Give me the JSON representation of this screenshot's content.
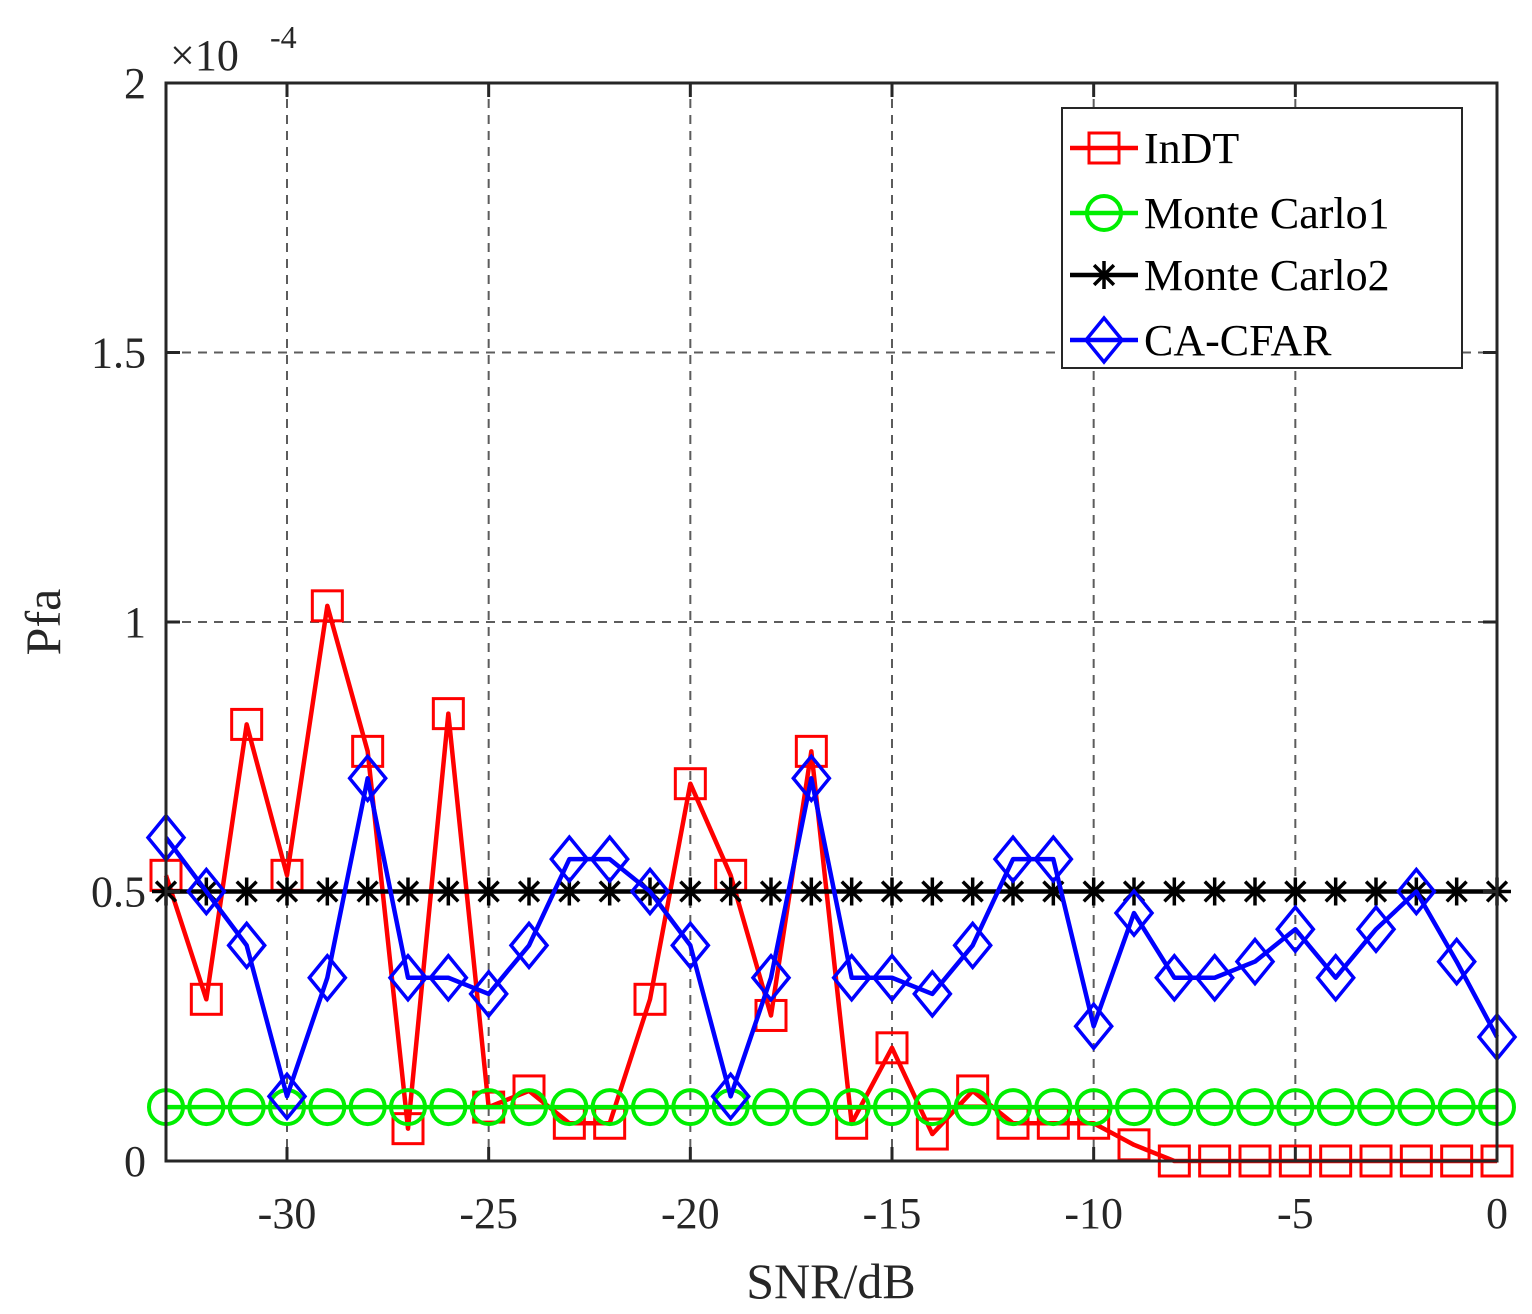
{
  "chart_data": {
    "type": "line",
    "xlabel": "SNR/dB",
    "ylabel": "Pfa",
    "xlim": [
      -33,
      0
    ],
    "ylim": [
      0,
      2
    ],
    "y_multiplier": "×10",
    "y_exponent": "-4",
    "xticks": [
      -30,
      -25,
      -20,
      -15,
      -10,
      -5,
      0
    ],
    "xtick_labels": [
      "-30",
      "-25",
      "-20",
      "-15",
      "-10",
      "-5",
      "0"
    ],
    "yticks": [
      0,
      0.5,
      1,
      1.5,
      2
    ],
    "ytick_labels": [
      "0",
      "0.5",
      "1",
      "1.5",
      "2"
    ],
    "grid": true,
    "legend_position": "top-right",
    "x": [
      -33,
      -32,
      -31,
      -30,
      -29,
      -28,
      -27,
      -26,
      -25,
      -24,
      -23,
      -22,
      -21,
      -20,
      -19,
      -18,
      -17,
      -16,
      -15,
      -14,
      -13,
      -12,
      -11,
      -10,
      -9,
      -8,
      -7,
      -6,
      -5,
      -4,
      -3,
      -2,
      -1,
      0
    ],
    "series": [
      {
        "name": "InDT",
        "color": "#ff0000",
        "marker": "square",
        "values": [
          0.53,
          0.3,
          0.81,
          0.53,
          1.03,
          0.76,
          0.06,
          0.83,
          0.1,
          0.13,
          0.07,
          0.07,
          0.3,
          0.7,
          0.53,
          0.27,
          0.76,
          0.07,
          0.21,
          0.05,
          0.13,
          0.07,
          0.07,
          0.07,
          0.03,
          0,
          0,
          0,
          0,
          0,
          0,
          0,
          0,
          0
        ]
      },
      {
        "name": "Monte Carlo1",
        "color": "#00ee00",
        "marker": "circle",
        "values": [
          0.1,
          0.1,
          0.1,
          0.1,
          0.1,
          0.1,
          0.1,
          0.1,
          0.1,
          0.1,
          0.1,
          0.1,
          0.1,
          0.1,
          0.1,
          0.1,
          0.1,
          0.1,
          0.1,
          0.1,
          0.1,
          0.1,
          0.1,
          0.1,
          0.1,
          0.1,
          0.1,
          0.1,
          0.1,
          0.1,
          0.1,
          0.1,
          0.1,
          0.1
        ]
      },
      {
        "name": "Monte Carlo2",
        "color": "#000000",
        "marker": "asterisk",
        "values": [
          0.5,
          0.5,
          0.5,
          0.5,
          0.5,
          0.5,
          0.5,
          0.5,
          0.5,
          0.5,
          0.5,
          0.5,
          0.5,
          0.5,
          0.5,
          0.5,
          0.5,
          0.5,
          0.5,
          0.5,
          0.5,
          0.5,
          0.5,
          0.5,
          0.5,
          0.5,
          0.5,
          0.5,
          0.5,
          0.5,
          0.5,
          0.5,
          0.5,
          0.5
        ]
      },
      {
        "name": "CA-CFAR",
        "color": "#0000ff",
        "marker": "diamond",
        "values": [
          0.6,
          0.5,
          0.4,
          0.12,
          0.34,
          0.71,
          0.34,
          0.34,
          0.31,
          0.4,
          0.56,
          0.56,
          0.5,
          0.4,
          0.12,
          0.34,
          0.71,
          0.34,
          0.34,
          0.31,
          0.4,
          0.56,
          0.56,
          0.25,
          0.46,
          0.34,
          0.34,
          0.37,
          0.43,
          0.34,
          0.43,
          0.5,
          0.37,
          0.23
        ]
      }
    ]
  }
}
